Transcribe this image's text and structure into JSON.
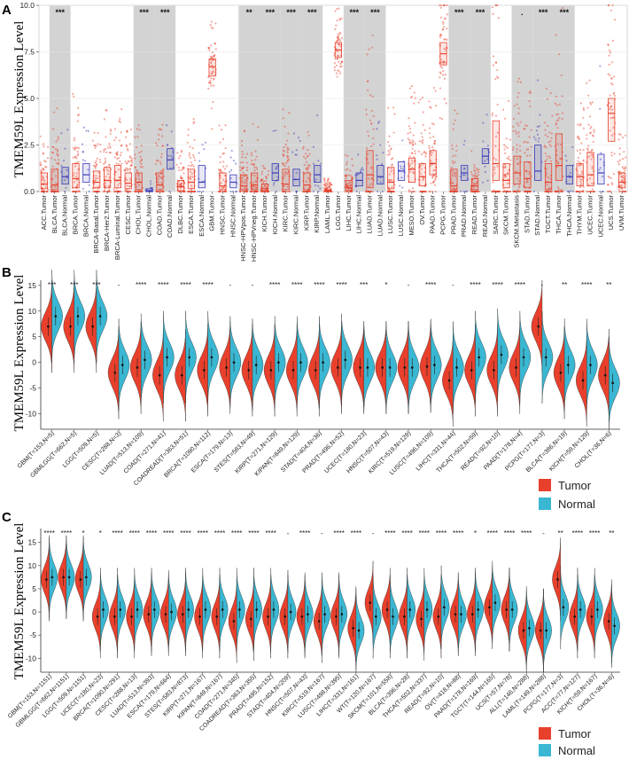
{
  "colors": {
    "tumor": "#e8402c",
    "normal": "#3ab7d2",
    "tumor_box": "#e8402c",
    "normal_box": "#3a3ab8",
    "band": "#d3d3d3"
  },
  "chart_data": [
    {
      "panel": "A",
      "type": "box",
      "ylabel": "TMEM59L Expression Level",
      "ylim": [
        0,
        10
      ],
      "yticks": [
        "0.0",
        "2.5",
        "5.0",
        "7.5",
        "10.0"
      ],
      "categories": [
        "ACC.Tumor",
        "BLCA.Tumor",
        "BLCA.Normal",
        "BRCA.Tumor",
        "BRCA.Normal",
        "BRCA-Basal.Tumor",
        "BRCA-Her2.Tumor",
        "BRCA-Luminal.Tumor",
        "CESC.Tumor",
        "CHOL.Tumor",
        "CHOL.Normal",
        "COAD.Tumor",
        "COAD.Normal",
        "DLBC.Tumor",
        "ESCA.Tumor",
        "ESCA.Normal",
        "GBM.Tumor",
        "HNSC.Tumor",
        "HNSC.Normal",
        "HNSC-HPVpos.Tumor",
        "HNSC-HPVneg.Tumor",
        "KICH.Tumor",
        "KICH.Normal",
        "KIRC.Tumor",
        "KIRC.Normal",
        "KIRP.Tumor",
        "KIRP.Normal",
        "LAML.Tumor",
        "LGG.Tumor",
        "LIHC.Tumor",
        "LIHC.Normal",
        "LUAD.Tumor",
        "LUAD.Normal",
        "LUSC.Tumor",
        "LUSC.Normal",
        "MESO.Tumor",
        "OV.Tumor",
        "PAAD.Tumor",
        "PCPG.Tumor",
        "PRAD.Tumor",
        "PRAD.Normal",
        "READ.Tumor",
        "READ.Normal",
        "SARC.Tumor",
        "SKCM.Tumor",
        "SKCM.Metastasis",
        "STAD.Tumor",
        "STAD.Normal",
        "TGCT.Tumor",
        "THCA.Tumor",
        "THCA.Normal",
        "THYM.Tumor",
        "UCEC.Tumor",
        "UCEC.Normal",
        "UCS.Tumor",
        "UVM.Tumor"
      ],
      "groups": [
        "tumor",
        "tumor",
        "normal",
        "tumor",
        "normal",
        "tumor",
        "tumor",
        "tumor",
        "tumor",
        "tumor",
        "normal",
        "tumor",
        "normal",
        "tumor",
        "tumor",
        "normal",
        "tumor",
        "tumor",
        "normal",
        "tumor",
        "tumor",
        "tumor",
        "normal",
        "tumor",
        "normal",
        "tumor",
        "normal",
        "tumor",
        "tumor",
        "tumor",
        "normal",
        "tumor",
        "normal",
        "tumor",
        "normal",
        "tumor",
        "tumor",
        "tumor",
        "tumor",
        "tumor",
        "normal",
        "tumor",
        "normal",
        "tumor",
        "tumor",
        "tumor",
        "tumor",
        "normal",
        "tumor",
        "tumor",
        "normal",
        "tumor",
        "tumor",
        "normal",
        "tumor",
        "tumor"
      ],
      "medians": [
        0.4,
        0.35,
        0.8,
        0.7,
        0.9,
        0.5,
        0.6,
        0.6,
        0.45,
        0.5,
        0.05,
        0.35,
        1.7,
        0.25,
        0.5,
        0.5,
        6.7,
        0.3,
        0.5,
        0.3,
        0.35,
        0.15,
        1.0,
        0.4,
        0.65,
        0.35,
        0.9,
        0.05,
        7.6,
        0.2,
        0.6,
        0.9,
        0.8,
        0.5,
        1.1,
        1.2,
        0.8,
        1.5,
        7.4,
        0.3,
        1.0,
        0.3,
        1.9,
        1.5,
        0.6,
        1.0,
        0.7,
        1.1,
        0.5,
        1.4,
        0.8,
        0.8,
        0.9,
        1.0,
        4.2,
        0.5
      ],
      "q1": [
        0.15,
        0.1,
        0.4,
        0.2,
        0.5,
        0.2,
        0.2,
        0.2,
        0.15,
        0.1,
        0.0,
        0.1,
        1.2,
        0.05,
        0.15,
        0.2,
        6.2,
        0.1,
        0.2,
        0.1,
        0.1,
        0.05,
        0.6,
        0.1,
        0.3,
        0.1,
        0.5,
        0.0,
        7.2,
        0.05,
        0.3,
        0.2,
        0.4,
        0.15,
        0.6,
        0.5,
        0.3,
        0.9,
        6.8,
        0.1,
        0.6,
        0.1,
        1.5,
        0.6,
        0.2,
        0.4,
        0.2,
        0.6,
        0.1,
        0.6,
        0.4,
        0.3,
        0.3,
        0.4,
        2.7,
        0.2
      ],
      "q3": [
        1.0,
        1.2,
        1.3,
        1.5,
        1.5,
        1.1,
        1.3,
        1.4,
        1.0,
        1.0,
        0.15,
        1.0,
        2.3,
        0.6,
        1.2,
        1.4,
        7.1,
        1.0,
        0.9,
        0.9,
        1.0,
        0.4,
        1.5,
        1.2,
        1.2,
        1.0,
        1.4,
        0.1,
        8.0,
        0.6,
        1.0,
        2.2,
        1.4,
        1.3,
        1.6,
        1.8,
        1.5,
        2.2,
        8.0,
        1.2,
        1.4,
        0.7,
        2.3,
        3.8,
        1.5,
        1.9,
        1.6,
        2.5,
        1.5,
        3.1,
        1.4,
        1.5,
        2.1,
        2.0,
        5.0,
        1.0
      ],
      "significance": [
        "",
        "***",
        "",
        "",
        "",
        "",
        "",
        "",
        "",
        "***",
        "",
        "***",
        "",
        "",
        "",
        "",
        "",
        "",
        "",
        "**",
        "",
        "***",
        "",
        "***",
        "",
        "***",
        "",
        "",
        "",
        "***",
        "",
        "***",
        "",
        "",
        "",
        "",
        "",
        "",
        "",
        "***",
        "",
        "***",
        "",
        "",
        "",
        ".",
        "",
        "***",
        "",
        "***",
        "",
        "",
        "",
        "",
        "",
        ""
      ]
    },
    {
      "panel": "B",
      "type": "split-violin",
      "ylabel": "TMEM59L Expression Level",
      "ylim": [
        -13,
        16
      ],
      "yticks": [
        "-10",
        "-5",
        "0",
        "5",
        "10",
        "15"
      ],
      "categories": [
        "GBM(T=153,N=5)",
        "GBMLGG(T=662,N=5)",
        "LGG(T=509,N=5)",
        "CESC(T=288,N=3)",
        "LUAD(T=513,N=109)",
        "COAD(T=271,N=41)",
        "COADREAD(T=363,N=51)",
        "BRCA(T=1090,N=112)",
        "ESCA(T=179,N=13)",
        "STES(T=583,N=49)",
        "KIRP(T=271,N=129)",
        "KIPAN(T=849,N=129)",
        "STAD(T=404,N=36)",
        "PRAD(T=496,N=52)",
        "UCEC(T=180,N=23)",
        "HNSC(T=507,N=43)",
        "KIRC(T=519,N=129)",
        "LUSC(T=496,N=109)",
        "LIHC(T=331,N=44)",
        "THCA(T=502,N=59)",
        "READ(T=92,N=10)",
        "PAAD(T=178,N=4)",
        "PCPG(T=177,N=3)",
        "BLCA(T=386,N=19)",
        "KICH(T=59,N=129)",
        "CHOL(T=36,N=6)"
      ],
      "tumor_median": [
        7.0,
        7.0,
        7.0,
        -2.0,
        -1.0,
        -2.5,
        -2.5,
        -1.5,
        -1.0,
        -1.5,
        -1.5,
        -1.5,
        -1.5,
        -1.0,
        -1.0,
        -1.0,
        -1.0,
        -0.8,
        -3.5,
        -1.5,
        -1.5,
        -1.0,
        7.0,
        -2.0,
        -3.5,
        -2.5
      ],
      "normal_median": [
        9.0,
        9.0,
        9.0,
        -0.5,
        0.5,
        1.0,
        1.0,
        1.0,
        0.0,
        -0.5,
        0.0,
        0.0,
        0.0,
        0.5,
        -1.0,
        -1.0,
        -1.0,
        -0.5,
        -1.0,
        1.0,
        1.5,
        1.0,
        1.0,
        -0.5,
        -0.5,
        -4.0
      ],
      "significance": [
        "***",
        "***",
        "***",
        "-",
        "****",
        "****",
        "****",
        "****",
        "-",
        "-",
        "****",
        "****",
        "****",
        "****",
        "***",
        "*",
        "-",
        "****",
        "-",
        "****",
        "****",
        "****",
        "-",
        "**",
        "****",
        "**"
      ]
    },
    {
      "panel": "C",
      "type": "split-violin",
      "ylabel": "TMEM59L Expression Level",
      "ylim": [
        -13,
        18
      ],
      "yticks": [
        "-10",
        "-5",
        "0",
        "5",
        "10",
        "15"
      ],
      "categories": [
        "GBM(T=153,N=1151)",
        "GBMLGG(T=662,N=1151)",
        "LGG(T=509,N=1151)",
        "UCEC(T=180,N=23)",
        "BRCA(T=1090,N=291)",
        "CESC(T=288,N=13)",
        "LUAD(T=513,N=393)",
        "ESCA(T=179,N=664)",
        "STES(T=583,N=873)",
        "KIRP(T=271,N=167)",
        "KIPAN(T=849,N=167)",
        "COAD(T=271,N=345)",
        "COADREAD(T=363,N=355)",
        "PRAD(T=495,N=152)",
        "STAD(T=404,N=209)",
        "HNSC(T=507,N=43)",
        "KIRC(T=519,N=167)",
        "LUSC(T=498,N=395)",
        "LIHC(T=331,N=161)",
        "WT(T=120,N=167)",
        "SKCM(T=101,N=558)",
        "BLCA(T=396,N=28)",
        "THCA(T=502,N=337)",
        "READ(T=92,N=10)",
        "OV(T=418,N=88)",
        "PAAD(T=178,N=169)",
        "TGCT(T=144,N=165)",
        "UCS(T=57,N=78)",
        "ALL(T=146,N=288)",
        "LAML(T=149,N=288)",
        "PCPG(T=177,N=3)",
        "ACC(T=77,N=127)",
        "KICH(T=59,N=167)",
        "CHOL(T=36,N=6)"
      ],
      "tumor_median": [
        7.0,
        7.5,
        7.0,
        -1.0,
        -1.0,
        -1.0,
        -0.5,
        -0.5,
        -0.5,
        -1.0,
        -1.0,
        -2.0,
        -1.5,
        -1.0,
        -1.0,
        -1.0,
        -2.0,
        -1.0,
        -3.5,
        2.0,
        0.5,
        -1.0,
        -1.5,
        -1.0,
        -0.5,
        -0.5,
        1.0,
        0.5,
        -4.0,
        -4.0,
        7.0,
        -1.0,
        -1.0,
        -2.0
      ],
      "normal_median": [
        7.5,
        7.5,
        7.5,
        0.5,
        0.5,
        0.5,
        0.5,
        0.0,
        0.5,
        0.5,
        0.5,
        0.5,
        0.5,
        0.5,
        0.0,
        -0.5,
        -0.5,
        -0.5,
        -4.0,
        -1.0,
        -1.0,
        0.5,
        0.5,
        1.0,
        -0.5,
        0.5,
        2.0,
        0.5,
        -3.5,
        -4.0,
        1.0,
        0.5,
        0.5,
        -3.0
      ],
      "significance": [
        "****",
        "****",
        "*",
        "*",
        "****",
        "****",
        "****",
        "****",
        "****",
        "****",
        "****",
        "****",
        "****",
        "****",
        "-",
        "****",
        "-",
        "****",
        "****",
        "-",
        "****",
        "****",
        "****",
        "****",
        "****",
        "*",
        "****",
        "****",
        "****",
        "-",
        "**",
        "****",
        "****",
        "**"
      ]
    }
  ],
  "legend": {
    "tumor_label": "Tumor",
    "normal_label": "Normal"
  },
  "panels": {
    "a": "A",
    "b": "B",
    "c": "C"
  }
}
